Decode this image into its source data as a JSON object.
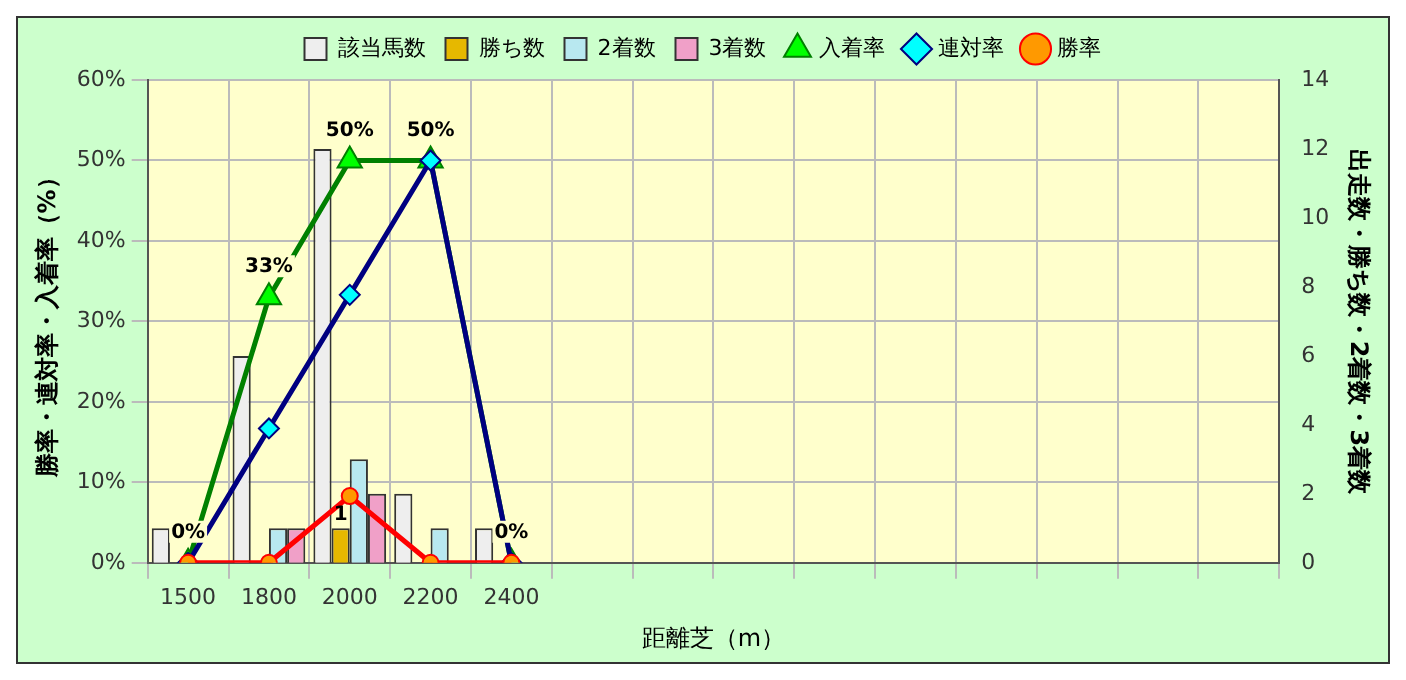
{
  "chart_data": {
    "type": "bar",
    "xlabel": "距離芝（m）",
    "ylabel": "勝率・連対率・入着率（%）",
    "y2label": "出走数・勝ち数・2着数・3着数",
    "categories": [
      "1500",
      "1800",
      "2000",
      "2200",
      "2400",
      null,
      null,
      null,
      null,
      null,
      null,
      null,
      null,
      null
    ],
    "series": [
      {
        "name": "該当馬数",
        "type": "bar",
        "axis": "y2",
        "color": "#eeeeee",
        "values": [
          1,
          6,
          12,
          2,
          1,
          null,
          null,
          null,
          null,
          null,
          null,
          null,
          null,
          null
        ]
      },
      {
        "name": "勝ち数",
        "type": "bar",
        "axis": "y2",
        "color": "#e6b800",
        "values": [
          0,
          0,
          1,
          0,
          0,
          null,
          null,
          null,
          null,
          null,
          null,
          null,
          null,
          null
        ],
        "value_labels": [
          null,
          null,
          "1",
          null,
          null,
          null,
          null,
          null,
          null,
          null,
          null,
          null,
          null,
          null
        ]
      },
      {
        "name": "2着数",
        "type": "bar",
        "axis": "y2",
        "color": "#b8e8f0",
        "values": [
          0,
          1,
          3,
          1,
          0,
          null,
          null,
          null,
          null,
          null,
          null,
          null,
          null,
          null
        ]
      },
      {
        "name": "3着数",
        "type": "bar",
        "axis": "y2",
        "color": "#f0a0c8",
        "values": [
          0,
          1,
          2,
          0,
          0,
          null,
          null,
          null,
          null,
          null,
          null,
          null,
          null,
          null
        ]
      },
      {
        "name": "入着率",
        "type": "line",
        "marker": "triangle",
        "color": "#008000",
        "values": [
          0,
          33,
          50,
          50,
          0,
          null,
          null,
          null,
          null,
          null,
          null,
          null,
          null,
          null
        ],
        "value_labels": [
          "0%",
          "33%",
          "50%",
          "50%",
          "0%",
          null,
          null,
          null,
          null,
          null,
          null,
          null,
          null,
          null
        ]
      },
      {
        "name": "連対率",
        "type": "line",
        "marker": "diamond",
        "color": "#000080",
        "values": [
          0,
          16.7,
          33.3,
          50,
          0,
          null,
          null,
          null,
          null,
          null,
          null,
          null,
          null,
          null
        ]
      },
      {
        "name": "勝率",
        "type": "line",
        "marker": "circle",
        "color": "#ff0000",
        "values": [
          0,
          0,
          8.3,
          0,
          0,
          null,
          null,
          null,
          null,
          null,
          null,
          null,
          null,
          null
        ]
      }
    ],
    "ylim": [
      0,
      60
    ],
    "yticks": [
      {
        "value": 0,
        "label": "0%"
      },
      {
        "value": 10,
        "label": "10%"
      },
      {
        "value": 20,
        "label": "20%"
      },
      {
        "value": 30,
        "label": "30%"
      },
      {
        "value": 40,
        "label": "40%"
      },
      {
        "value": 50,
        "label": "50%"
      },
      {
        "value": 60,
        "label": "60%"
      }
    ],
    "y2lim": [
      0,
      14
    ],
    "y2ticks": [
      0,
      2,
      4,
      6,
      8,
      10,
      12,
      14
    ],
    "grid": true,
    "legend": "top",
    "line_style": "solid"
  }
}
